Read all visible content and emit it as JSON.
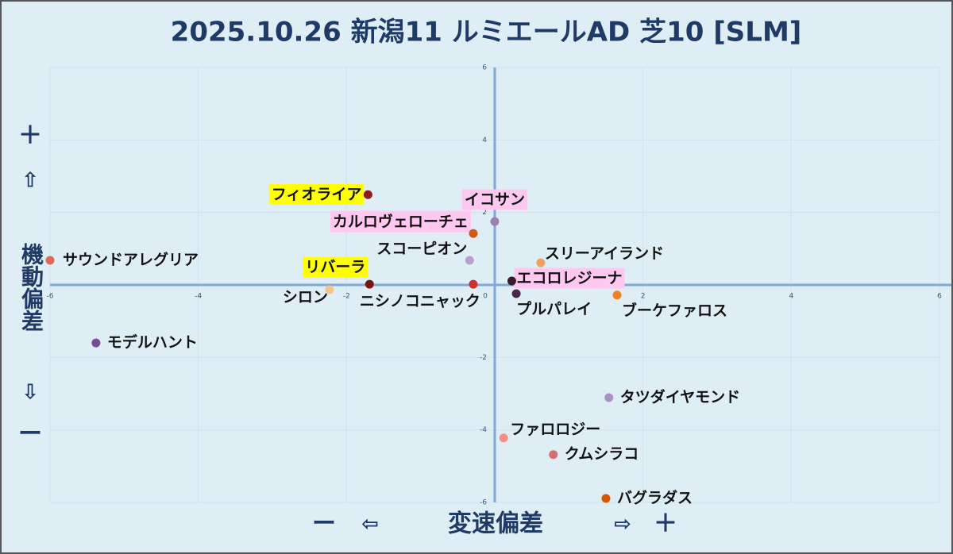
{
  "chart_data": {
    "type": "scatter",
    "title": "2025.10.26 新潟11 ルミエールAD 芝10 [SLM]",
    "y_label": {
      "plus": "＋",
      "up": "⇧",
      "text": "機動偏差",
      "down": "⇩",
      "minus": "ー"
    },
    "x_label": {
      "minus": "ー",
      "left": "⇦",
      "text": "変速偏差",
      "right": "⇨",
      "plus": "＋"
    },
    "xlim": [
      -6,
      6
    ],
    "ylim": [
      -6,
      6
    ],
    "xticks": [
      -6,
      -4,
      -2,
      0,
      2,
      4,
      6
    ],
    "yticks": [
      -6,
      -4,
      -2,
      2,
      4,
      6
    ],
    "grid": true,
    "points": [
      {
        "label": "フィオライア",
        "x": -1.71,
        "y": 2.49,
        "color": "#8b1c1c",
        "highlight": "#ffff00"
      },
      {
        "label": "イコサン",
        "x": 0.0,
        "y": 1.75,
        "color": "#9a80b0",
        "highlight": "#ffc8f0"
      },
      {
        "label": "カルロヴェローチェ",
        "x": -0.29,
        "y": 1.42,
        "color": "#d05a14",
        "highlight": "#ffc8f0"
      },
      {
        "label": "スコーピオン",
        "x": -0.34,
        "y": 0.68,
        "color": "#b8a2cc"
      },
      {
        "label": "サウンドアレグリア",
        "x": -6.0,
        "y": 0.68,
        "color": "#e06a5a"
      },
      {
        "label": "スリーアイランド",
        "x": 0.62,
        "y": 0.61,
        "color": "#f2a060"
      },
      {
        "label": "リバーラ",
        "x": -1.69,
        "y": 0.02,
        "color": "#7a1414",
        "highlight": "#ffff00"
      },
      {
        "label": "ニシノコニャック",
        "x": -0.29,
        "y": 0.02,
        "color": "#cc3030"
      },
      {
        "label": "エコロレジーナ",
        "x": 0.23,
        "y": 0.11,
        "color": "#3a1a2a",
        "highlight": "#ffc8f0"
      },
      {
        "label": "シロン",
        "x": -2.23,
        "y": -0.13,
        "color": "#f4c490"
      },
      {
        "label": "プルパレイ",
        "x": 0.29,
        "y": -0.24,
        "color": "#4a284a"
      },
      {
        "label": "ブーケファロス",
        "x": 1.65,
        "y": -0.28,
        "color": "#f08020"
      },
      {
        "label": "モデルハント",
        "x": -5.38,
        "y": -1.6,
        "color": "#7a4a9a"
      },
      {
        "label": "タツダイヤモンド",
        "x": 1.54,
        "y": -3.11,
        "color": "#a892c4"
      },
      {
        "label": "ファロロジー",
        "x": 0.12,
        "y": -4.22,
        "color": "#f49080"
      },
      {
        "label": "クムシラコ",
        "x": 0.79,
        "y": -4.68,
        "color": "#d47070"
      },
      {
        "label": "バグラダス",
        "x": 1.5,
        "y": -5.89,
        "color": "#d85500"
      }
    ]
  }
}
